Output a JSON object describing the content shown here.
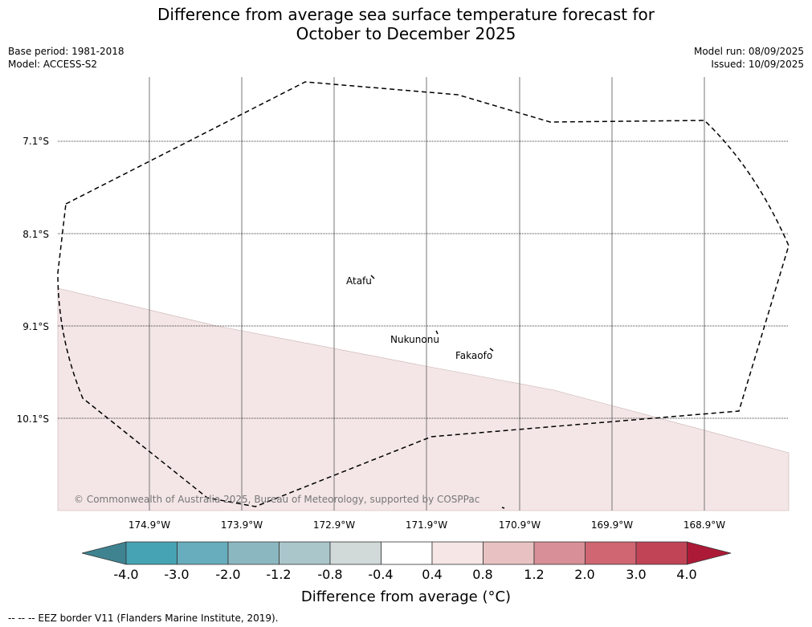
{
  "title_line1": "Difference from average sea surface temperature forecast for",
  "title_line2": "October to December 2025",
  "base_period": "Base period: 1981-2018",
  "model": "Model: ACCESS-S2",
  "model_run": "Model run: 08/09/2025",
  "issued": "Issued: 10/09/2025",
  "lat_ticks": [
    "7.1°S",
    "8.1°S",
    "9.1°S",
    "10.1°S"
  ],
  "lon_ticks": [
    "174.9°W",
    "173.9°W",
    "172.9°W",
    "171.9°W",
    "170.9°W",
    "169.9°W",
    "168.9°W"
  ],
  "places": [
    "Atafu",
    "Nukunonu",
    "Fakaofo"
  ],
  "copyright": "© Commonwealth of Australia 2025, Bureau of Meteorology, supported by COSPPac",
  "colorbar": {
    "labels": [
      "-4.0",
      "-3.0",
      "-2.0",
      "-1.2",
      "-0.8",
      "-0.4",
      "0.4",
      "0.8",
      "1.2",
      "2.0",
      "3.0",
      "4.0"
    ],
    "colors": [
      "#3f8391",
      "#46a3b3",
      "#67adbd",
      "#8bb7c1",
      "#aac6cb",
      "#d1d9d9",
      "#ffffff",
      "#f6e6e6",
      "#e8c2c2",
      "#d88f97",
      "#cf6672",
      "#c14456",
      "#ad1a38"
    ],
    "title": "Difference from average (°C)"
  },
  "map_fill_color": "#f4e6e6",
  "eez_legend": "-- -- -- EEZ border V11 (Flanders Marine Institute, 2019)."
}
